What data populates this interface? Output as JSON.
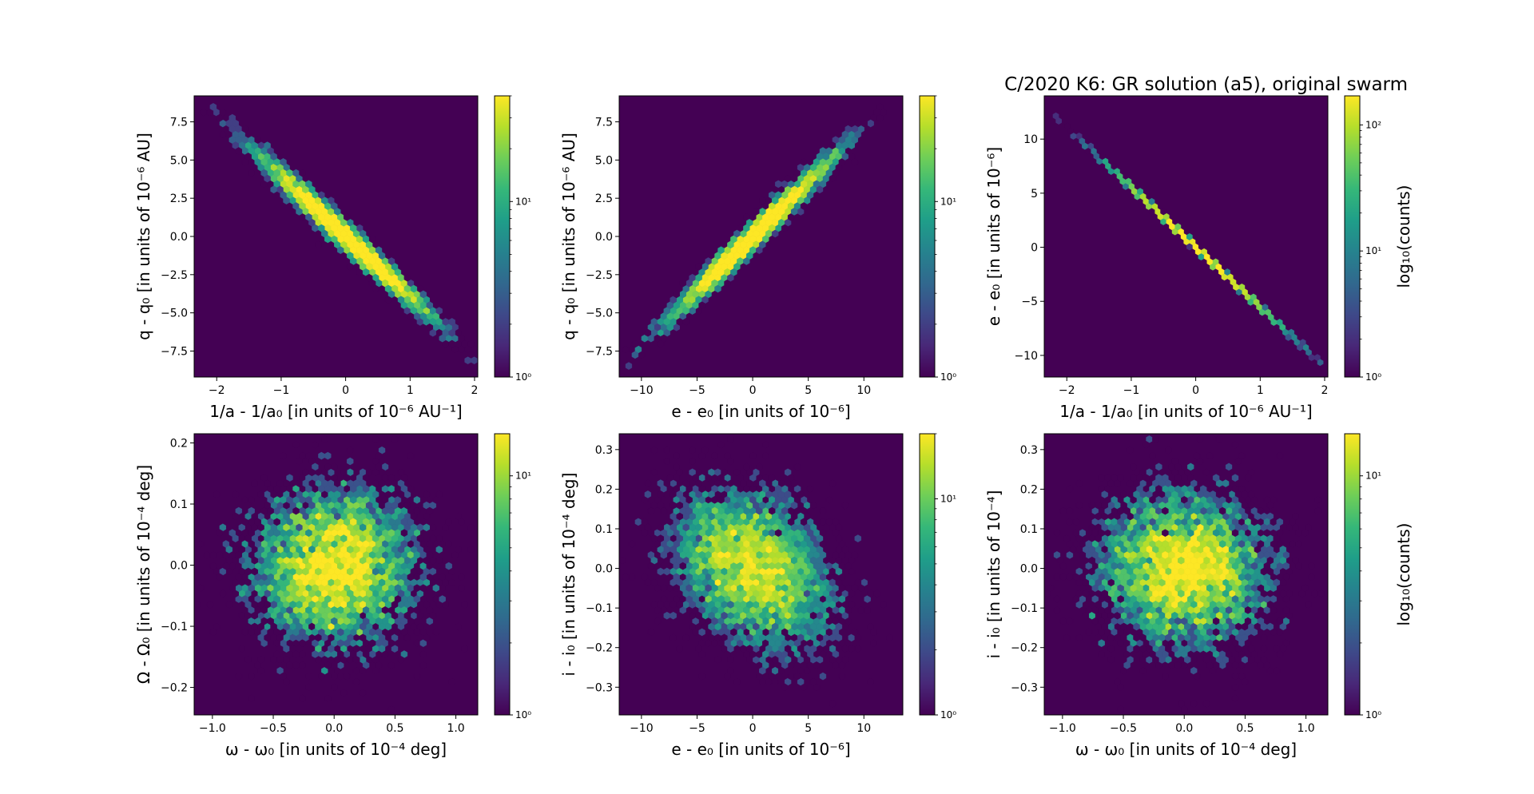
{
  "figure": {
    "title": "C/2020 K6: GR solution (a5), original swarm"
  },
  "colors": {
    "background": "#440154",
    "colormap": [
      "#440154",
      "#482878",
      "#3e4989",
      "#31688e",
      "#26828e",
      "#1f9e89",
      "#35b779",
      "#6ece58",
      "#b5de2b",
      "#fde725"
    ]
  },
  "chart_data": [
    {
      "type": "heatmap",
      "subtype": "hexbin",
      "xlabel": "1/a - 1/a₀ [in units of 10⁻⁶ AU⁻¹]",
      "ylabel": "q - q₀ [in units of 10⁻⁶ AU]",
      "xlim": [
        -2.35,
        2.05
      ],
      "ylim": [
        -9.2,
        9.2
      ],
      "xticks": [
        -2,
        -1,
        0,
        1,
        2
      ],
      "xtick_labels": [
        "−2",
        "−1",
        "0",
        "1",
        "2"
      ],
      "yticks": [
        -7.5,
        -5.0,
        -2.5,
        0.0,
        2.5,
        5.0,
        7.5
      ],
      "ytick_labels": [
        "−7.5",
        "−5.0",
        "−2.5",
        "0.0",
        "2.5",
        "5.0",
        "7.5"
      ],
      "colorbar": {
        "scale": "log",
        "range": [
          1,
          40
        ],
        "ticks": [
          1,
          10
        ],
        "tick_labels": [
          "10⁰",
          "10¹"
        ],
        "label": ""
      },
      "distribution": {
        "kind": "correlated_gaussian",
        "x_mean": 0.0,
        "x_sd": 0.65,
        "y_mean": 0.0,
        "y_sd": 2.6,
        "correlation": -0.985,
        "n": 5000
      }
    },
    {
      "type": "heatmap",
      "subtype": "hexbin",
      "xlabel": "e - e₀ [in units of 10⁻⁶]",
      "ylabel": "q - q₀ [in units of 10⁻⁶ AU]",
      "xlim": [
        -12,
        13.5
      ],
      "ylim": [
        -9.2,
        9.2
      ],
      "xticks": [
        -10,
        -5,
        0,
        5,
        10
      ],
      "xtick_labels": [
        "−10",
        "−5",
        "0",
        "5",
        "10"
      ],
      "yticks": [
        -7.5,
        -5.0,
        -2.5,
        0.0,
        2.5,
        5.0,
        7.5
      ],
      "ytick_labels": [
        "−7.5",
        "−5.0",
        "−2.5",
        "0.0",
        "2.5",
        "5.0",
        "7.5"
      ],
      "colorbar": {
        "scale": "log",
        "range": [
          1,
          40
        ],
        "ticks": [
          1,
          10
        ],
        "tick_labels": [
          "10⁰",
          "10¹"
        ],
        "label": ""
      },
      "distribution": {
        "kind": "correlated_gaussian",
        "x_mean": 0.0,
        "x_sd": 3.6,
        "y_mean": 0.0,
        "y_sd": 2.6,
        "correlation": 0.985,
        "n": 5000
      }
    },
    {
      "type": "heatmap",
      "subtype": "hexbin",
      "title": "C/2020 K6: GR solution (a5), original swarm",
      "xlabel": "1/a - 1/a₀ [in units of 10⁻⁶ AU⁻¹]",
      "ylabel": "e - e₀ [in units of 10⁻⁶]",
      "xlim": [
        -2.35,
        2.05
      ],
      "ylim": [
        -12,
        14
      ],
      "xticks": [
        -2,
        -1,
        0,
        1,
        2
      ],
      "xtick_labels": [
        "−2",
        "−1",
        "0",
        "1",
        "2"
      ],
      "yticks": [
        -10,
        -5,
        0,
        5,
        10
      ],
      "ytick_labels": [
        "−10",
        "−5",
        "0",
        "5",
        "10"
      ],
      "colorbar": {
        "scale": "log",
        "range": [
          1,
          170
        ],
        "ticks": [
          1,
          10,
          100
        ],
        "tick_labels": [
          "10⁰",
          "10¹",
          "10²"
        ],
        "label": "log₁₀(counts)"
      },
      "distribution": {
        "kind": "correlated_gaussian",
        "x_mean": 0.0,
        "x_sd": 0.65,
        "y_mean": 0.0,
        "y_sd": 3.6,
        "correlation": -0.9999,
        "n": 5000
      }
    },
    {
      "type": "heatmap",
      "subtype": "hexbin",
      "xlabel": "ω - ω₀ [in units of 10⁻⁴ deg]",
      "ylabel": "Ω - Ω₀ [in units of 10⁻⁴ deg]",
      "xlim": [
        -1.15,
        1.18
      ],
      "ylim": [
        -0.245,
        0.215
      ],
      "xticks": [
        -1.0,
        -0.5,
        0.0,
        0.5,
        1.0
      ],
      "xtick_labels": [
        "−1.0",
        "−0.5",
        "0.0",
        "0.5",
        "1.0"
      ],
      "yticks": [
        -0.2,
        -0.1,
        0.0,
        0.1,
        0.2
      ],
      "ytick_labels": [
        "−0.2",
        "−0.1",
        "0.0",
        "0.1",
        "0.2"
      ],
      "colorbar": {
        "scale": "log",
        "range": [
          1,
          15
        ],
        "ticks": [
          1,
          10
        ],
        "tick_labels": [
          "10⁰",
          "10¹"
        ],
        "label": ""
      },
      "distribution": {
        "kind": "correlated_gaussian",
        "x_mean": 0.0,
        "x_sd": 0.35,
        "y_mean": 0.0,
        "y_sd": 0.065,
        "correlation": 0.05,
        "n": 5000
      }
    },
    {
      "type": "heatmap",
      "subtype": "hexbin",
      "xlabel": "e - e₀ [in units of 10⁻⁶]",
      "ylabel": "i - i₀ [in units of 10⁻⁴ deg]",
      "xlim": [
        -12,
        13.5
      ],
      "ylim": [
        -0.37,
        0.34
      ],
      "xticks": [
        -10,
        -5,
        0,
        5,
        10
      ],
      "xtick_labels": [
        "−10",
        "−5",
        "0",
        "5",
        "10"
      ],
      "yticks": [
        -0.3,
        -0.2,
        -0.1,
        0.0,
        0.1,
        0.2,
        0.3
      ],
      "ytick_labels": [
        "−0.3",
        "−0.2",
        "−0.1",
        "0.0",
        "0.1",
        "0.2",
        "0.3"
      ],
      "colorbar": {
        "scale": "log",
        "range": [
          1,
          20
        ],
        "ticks": [
          1,
          10
        ],
        "tick_labels": [
          "10⁰",
          "10¹"
        ],
        "label": ""
      },
      "distribution": {
        "kind": "correlated_gaussian",
        "x_mean": 0.0,
        "x_sd": 3.6,
        "y_mean": 0.0,
        "y_sd": 0.1,
        "correlation": -0.3,
        "n": 5000
      }
    },
    {
      "type": "heatmap",
      "subtype": "hexbin",
      "xlabel": "ω - ω₀ [in units of 10⁻⁴ deg]",
      "ylabel": "i - i₀ [in units of 10⁻⁴]",
      "xlim": [
        -1.15,
        1.18
      ],
      "ylim": [
        -0.37,
        0.34
      ],
      "xticks": [
        -1.0,
        -0.5,
        0.0,
        0.5,
        1.0
      ],
      "xtick_labels": [
        "−1.0",
        "−0.5",
        "0.0",
        "0.5",
        "1.0"
      ],
      "yticks": [
        -0.3,
        -0.2,
        -0.1,
        0.0,
        0.1,
        0.2,
        0.3
      ],
      "ytick_labels": [
        "−0.3",
        "−0.2",
        "−0.1",
        "0.0",
        "0.1",
        "0.2",
        "0.3"
      ],
      "colorbar": {
        "scale": "log",
        "range": [
          1,
          15
        ],
        "ticks": [
          1,
          10
        ],
        "tick_labels": [
          "10⁰",
          "10¹"
        ],
        "label": "log₁₀(counts)"
      },
      "distribution": {
        "kind": "correlated_gaussian",
        "x_mean": 0.0,
        "x_sd": 0.35,
        "y_mean": 0.0,
        "y_sd": 0.1,
        "correlation": -0.05,
        "n": 5000
      }
    }
  ]
}
